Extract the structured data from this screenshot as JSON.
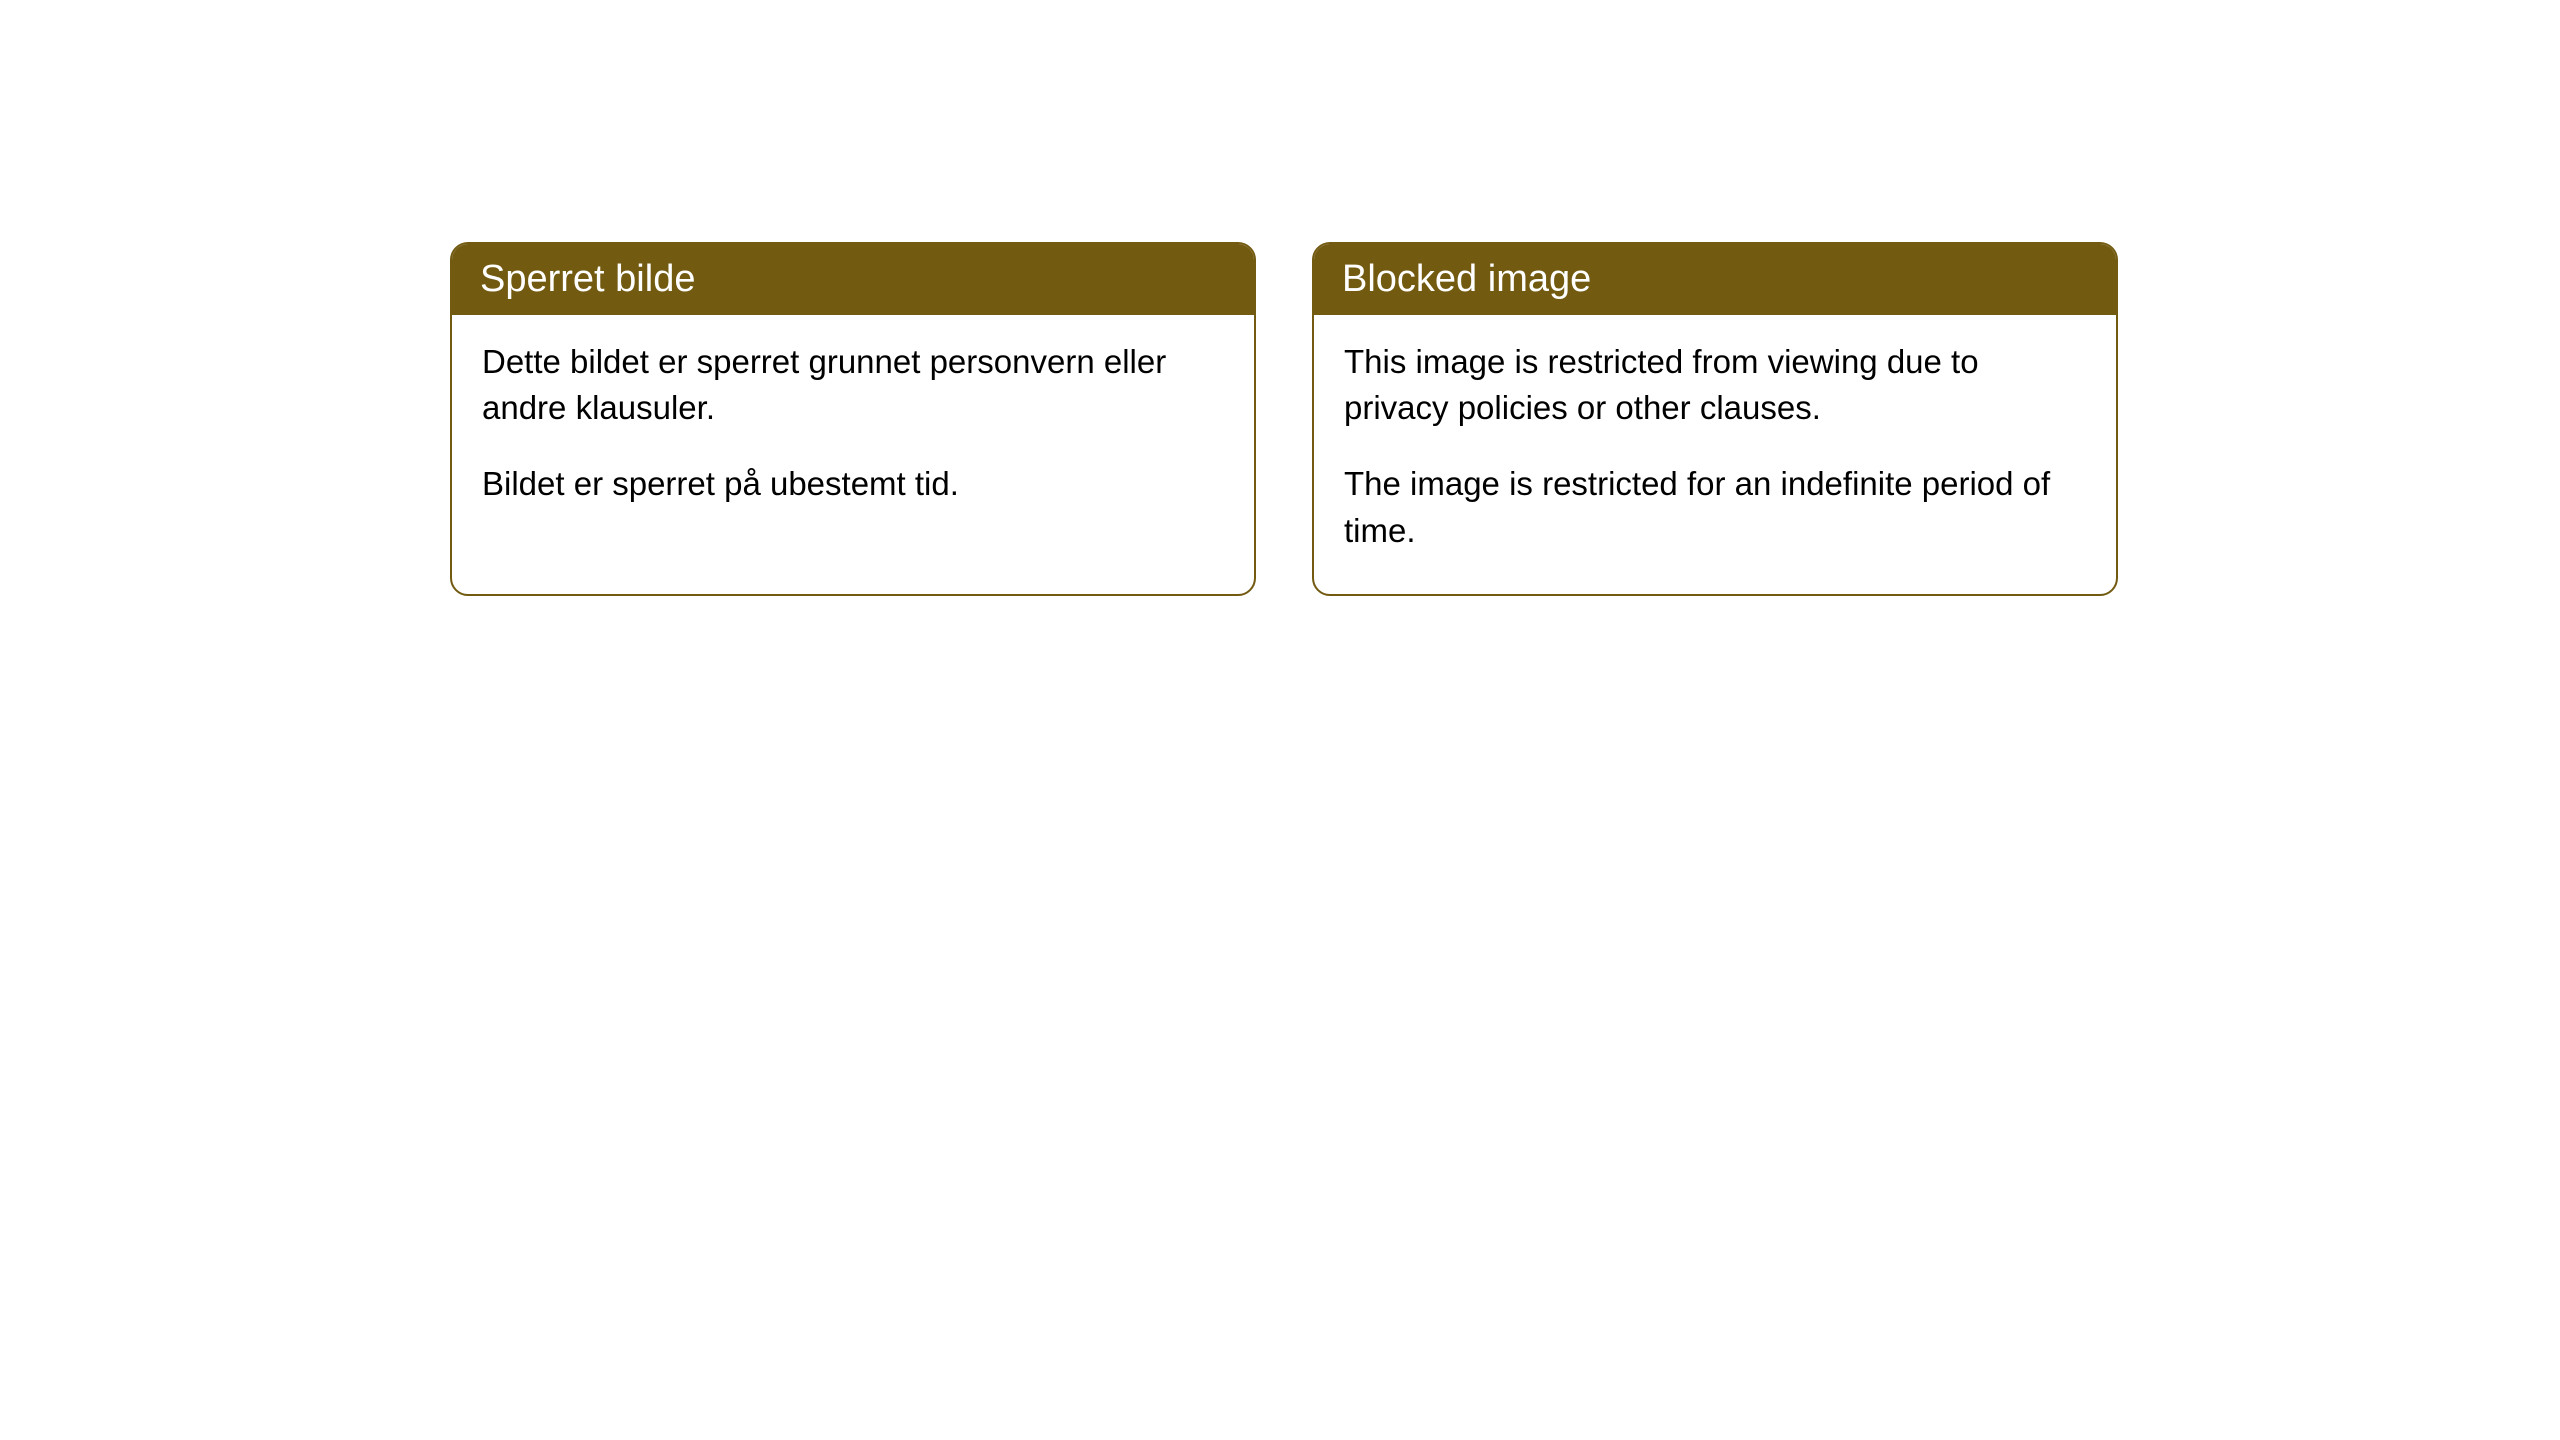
{
  "cards": [
    {
      "title": "Sperret bilde",
      "paragraph1": "Dette bildet er sperret grunnet personvern eller andre klausuler.",
      "paragraph2": "Bildet er sperret på ubestemt tid."
    },
    {
      "title": "Blocked image",
      "paragraph1": "This image is restricted from viewing due to privacy policies or other clauses.",
      "paragraph2": "The image is restricted for an indefinite period of time."
    }
  ],
  "style": {
    "header_bg_color": "#725a11",
    "header_text_color": "#ffffff",
    "border_color": "#725a11",
    "body_bg_color": "#ffffff",
    "body_text_color": "#000000",
    "page_bg_color": "#ffffff",
    "header_fontsize": 38,
    "body_fontsize": 33,
    "border_radius": 18
  }
}
